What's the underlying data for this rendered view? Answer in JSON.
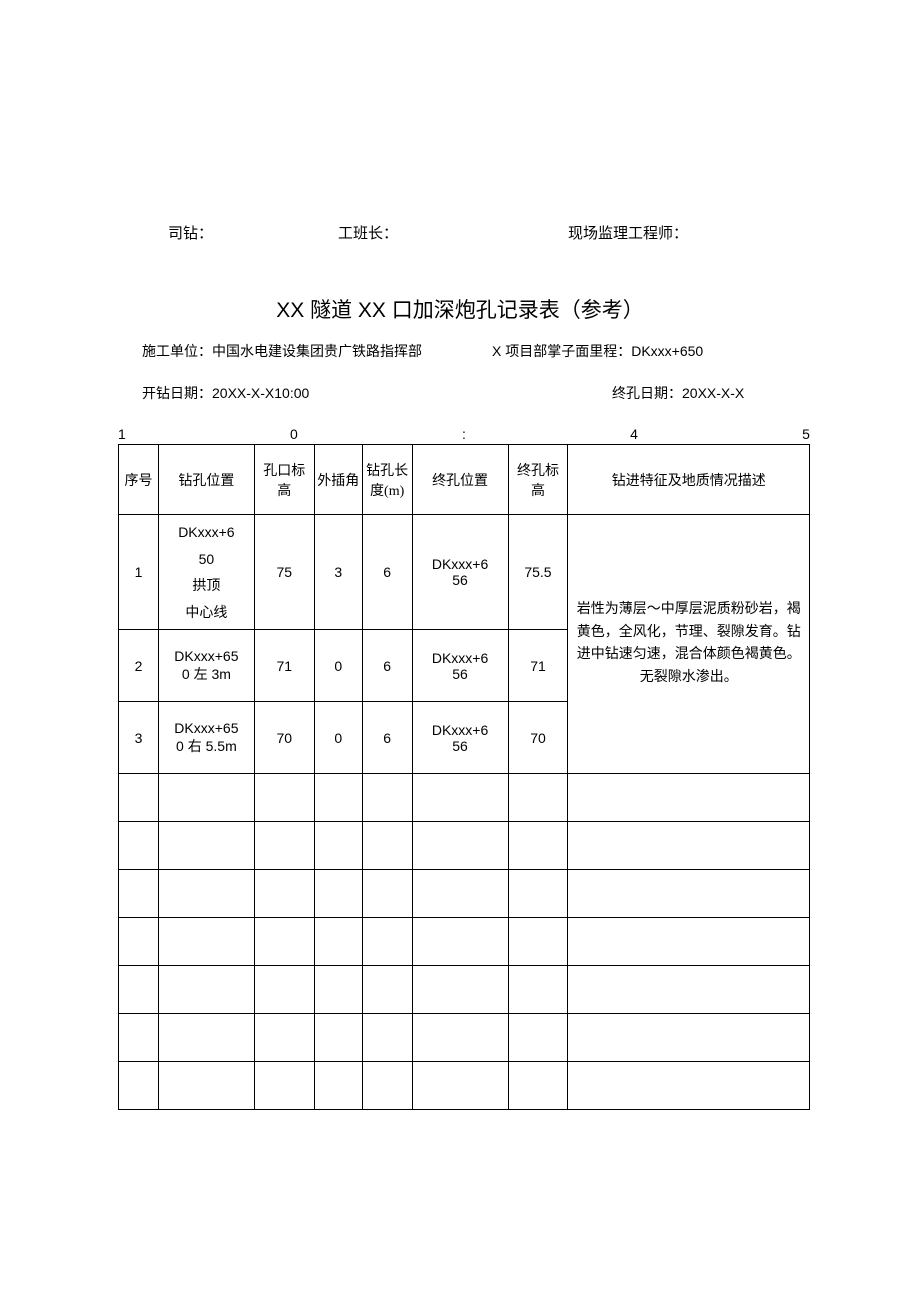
{
  "signatures": {
    "driller_label": "司钻：",
    "foreman_label": "工班长：",
    "supervisor_label": "现场监理工程师："
  },
  "title": "XX 隧道 XX 口加深炮孔记录表（参考）",
  "info": {
    "construction_unit_label": "施工单位：中国水电建设集团贵广铁路指挥部",
    "project_mileage_label": "X 项目部掌子面里程：DKxxx+650",
    "start_date_label": "开钻日期：20XX-X-X10:00",
    "end_date_label": "终孔日期：20XX-X-X"
  },
  "scale": {
    "marks": [
      "1",
      "0",
      ":",
      "4",
      "5"
    ]
  },
  "table": {
    "headers": {
      "seq": "序号",
      "drill_pos": "钻孔位置",
      "hole_elev": "孔口标高",
      "angle": "外插角",
      "length": "钻孔长度(m)",
      "end_pos": "终孔位置",
      "end_elev": "终孔标高",
      "desc": "钻进特征及地质情况描述"
    },
    "rows": [
      {
        "seq": "1",
        "drill_pos": "DKxxx+6\n50\n拱顶\n中心线",
        "hole_elev": "75",
        "angle": "3",
        "length": "6",
        "end_pos": "DKxxx+6\n56",
        "end_elev": "75.5"
      },
      {
        "seq": "2",
        "drill_pos": "DKxxx+65\n0 左 3m",
        "hole_elev": "71",
        "angle": "0",
        "length": "6",
        "end_pos": "DKxxx+6\n56",
        "end_elev": "71"
      },
      {
        "seq": "3",
        "drill_pos": "DKxxx+65\n0 右 5.5m",
        "hole_elev": "70",
        "angle": "0",
        "length": "6",
        "end_pos": "DKxxx+6\n56",
        "end_elev": "70"
      }
    ],
    "description": "岩性为薄层～中厚层泥质粉砂岩，褐黄色，全风化，节理、裂隙发育。钻进中钻速匀速，混合体颜色褐黄色。无裂隙水渗出。",
    "empty_row_count": 7
  },
  "colors": {
    "background": "#ffffff",
    "text": "#000000",
    "border": "#000000"
  },
  "fonts": {
    "body": "SimSun",
    "numeric": "Arial",
    "title_size": 21,
    "body_size": 14,
    "signature_size": 15
  }
}
